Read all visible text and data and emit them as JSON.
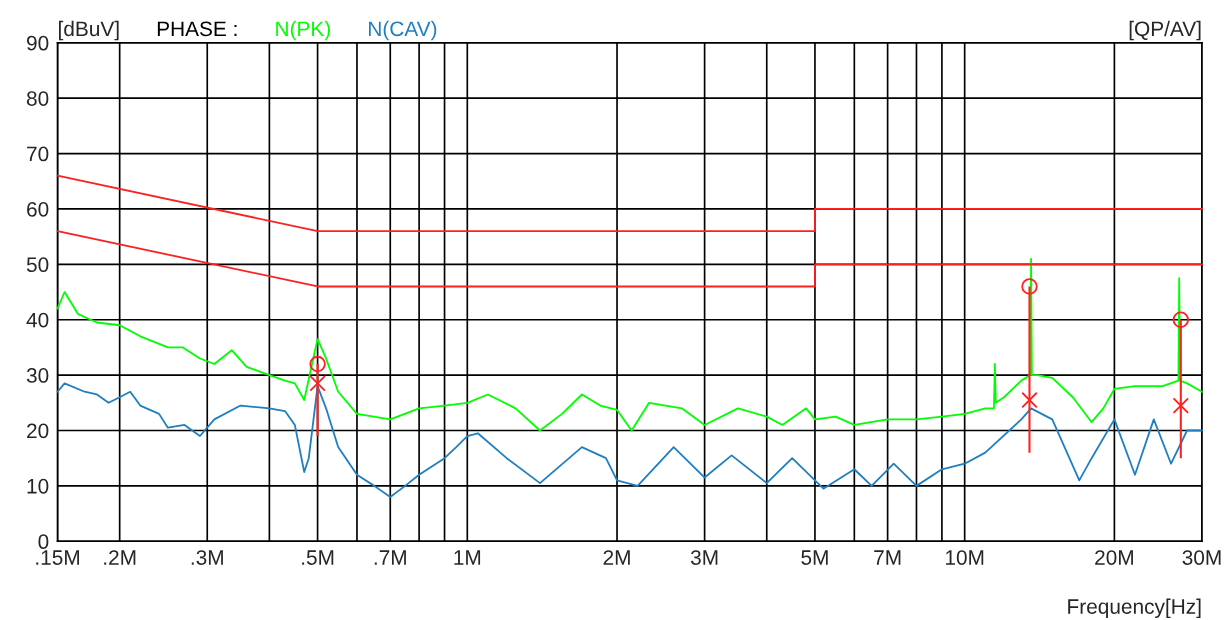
{
  "chart_data": {
    "type": "line",
    "ylabel": "[dBuV]",
    "xlabel": "Frequency[Hz]",
    "legend_title": "PHASE :",
    "legend": "top left",
    "log": "x",
    "grid": true,
    "annotations": [
      "[QP/AV]"
    ],
    "xlim": [
      0.15,
      30
    ],
    "ylim": [
      0,
      90
    ],
    "xticks": [
      {
        "value": 0.15,
        "label": ".15M"
      },
      {
        "value": 0.2,
        "label": ".2M"
      },
      {
        "value": 0.3,
        "label": ".3M"
      },
      {
        "value": 0.4,
        "label": null
      },
      {
        "value": 0.5,
        "label": ".5M"
      },
      {
        "value": 0.6,
        "label": null
      },
      {
        "value": 0.7,
        "label": ".7M"
      },
      {
        "value": 0.8,
        "label": null
      },
      {
        "value": 0.9,
        "label": null
      },
      {
        "value": 1,
        "label": "1M"
      },
      {
        "value": 2,
        "label": "2M"
      },
      {
        "value": 3,
        "label": "3M"
      },
      {
        "value": 4,
        "label": null
      },
      {
        "value": 5,
        "label": "5M"
      },
      {
        "value": 6,
        "label": null
      },
      {
        "value": 7,
        "label": "7M"
      },
      {
        "value": 8,
        "label": null
      },
      {
        "value": 9,
        "label": null
      },
      {
        "value": 10,
        "label": "10M"
      },
      {
        "value": 20,
        "label": "20M"
      },
      {
        "value": 30,
        "label": "30M"
      }
    ],
    "yticks": [
      0,
      10,
      20,
      30,
      40,
      50,
      60,
      70,
      80,
      90
    ],
    "series": [
      {
        "name": "N(PK)",
        "color": "#00ff00",
        "x": [
          0.15,
          0.155,
          0.165,
          0.18,
          0.2,
          0.22,
          0.25,
          0.268,
          0.29,
          0.31,
          0.336,
          0.36,
          0.4,
          0.43,
          0.45,
          0.47,
          0.49,
          0.5,
          0.52,
          0.55,
          0.6,
          0.7,
          0.8,
          0.9,
          1.0,
          1.1,
          1.25,
          1.4,
          1.55,
          1.7,
          1.85,
          2.0,
          2.14,
          2.32,
          2.7,
          3.0,
          3.5,
          4.0,
          4.3,
          4.8,
          5.0,
          5.5,
          6.0,
          7.0,
          8.0,
          9.0,
          10,
          11,
          11.45,
          11.5,
          11.55,
          12,
          13,
          13.55,
          13.6,
          13.65,
          14,
          15,
          16.5,
          18,
          19,
          20,
          22,
          25,
          26.9,
          27,
          27.1,
          28,
          30
        ],
        "values": [
          42,
          45,
          41,
          39.5,
          39,
          37,
          35,
          35,
          33,
          32,
          34.5,
          31.5,
          30,
          29,
          28.5,
          25.5,
          33,
          36.5,
          33,
          27,
          23,
          22,
          24,
          24.5,
          25,
          26.5,
          24,
          20,
          23,
          26.5,
          24.5,
          23.7,
          20,
          25,
          24,
          21,
          24,
          22.5,
          21,
          24,
          22,
          22.5,
          21,
          22,
          22,
          22.5,
          23,
          24,
          24,
          32,
          25,
          26,
          29,
          30,
          51,
          30,
          30,
          29.5,
          26,
          21.5,
          24,
          27.5,
          28,
          28,
          29,
          47.5,
          29,
          28.5,
          27
        ]
      },
      {
        "name": "N(CAV)",
        "color": "#1f7fc0",
        "x": [
          0.15,
          0.155,
          0.17,
          0.18,
          0.19,
          0.2,
          0.21,
          0.22,
          0.24,
          0.25,
          0.27,
          0.29,
          0.31,
          0.35,
          0.4,
          0.43,
          0.45,
          0.47,
          0.48,
          0.5,
          0.52,
          0.55,
          0.6,
          0.65,
          0.7,
          0.75,
          0.8,
          0.9,
          0.95,
          1.0,
          1.05,
          1.2,
          1.4,
          1.7,
          1.9,
          2.0,
          2.2,
          2.6,
          3.0,
          3.4,
          4.0,
          4.5,
          5.2,
          6.0,
          6.5,
          7.2,
          8,
          9,
          10,
          11,
          13,
          13.6,
          15,
          17,
          18,
          20,
          22,
          24,
          26,
          28,
          30
        ],
        "values": [
          27,
          28.5,
          27,
          26.5,
          25,
          26,
          27,
          24.5,
          23,
          20.5,
          21,
          19,
          22,
          24.5,
          24,
          23.5,
          21,
          12.5,
          15,
          28,
          24,
          17,
          12,
          10,
          8,
          10,
          12,
          15,
          17,
          19,
          19.5,
          15,
          10.5,
          17,
          15,
          11,
          10,
          17,
          11.5,
          15.5,
          10.5,
          15,
          9.5,
          13,
          10,
          14,
          10,
          13,
          14,
          16,
          22,
          24,
          22,
          11,
          15,
          22,
          12,
          22,
          14,
          20,
          20
        ]
      },
      {
        "color": "#ff2020",
        "x": [
          0.15,
          0.5,
          5,
          5,
          30
        ],
        "values": [
          66,
          56,
          56,
          60,
          60
        ]
      },
      {
        "color": "#ff2020",
        "x": [
          0.15,
          0.5,
          5,
          5,
          30
        ],
        "values": [
          56,
          46,
          46,
          50,
          50
        ]
      },
      {
        "type": "scatter",
        "marker": "circle",
        "color": "#ff2020",
        "x": [
          0.5,
          13.5,
          27.2
        ],
        "values": [
          32,
          46,
          40
        ],
        "errors": [
          [
            19,
            32
          ],
          [
            16,
            46
          ],
          [
            15,
            40
          ]
        ]
      },
      {
        "type": "scatter",
        "marker": "cross",
        "color": "#ff2020",
        "x": [
          0.5,
          13.5,
          27.2
        ],
        "values": [
          28.5,
          25.5,
          24.5
        ]
      }
    ]
  }
}
